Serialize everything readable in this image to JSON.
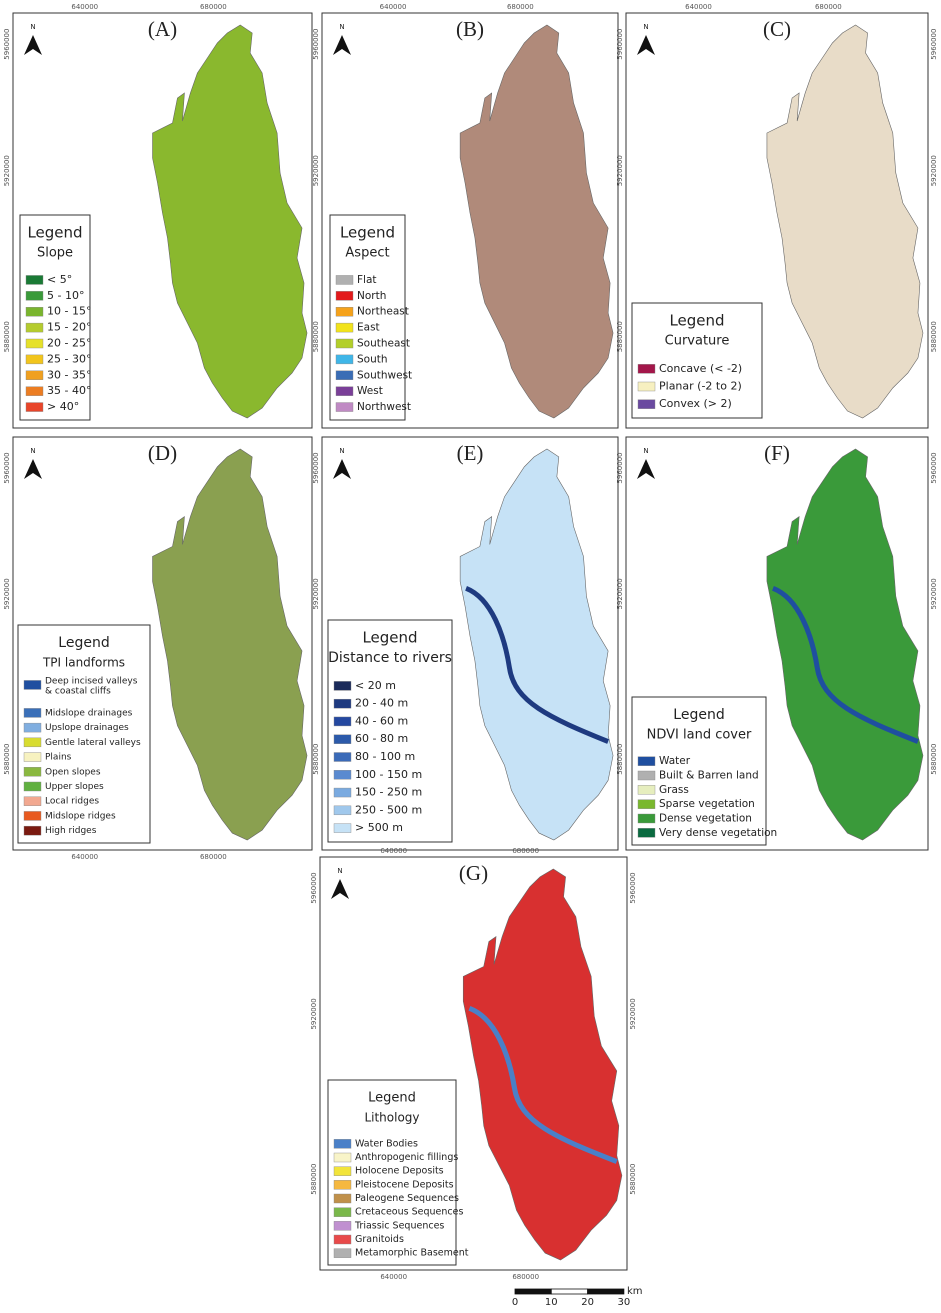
{
  "figure": {
    "north_label": "N",
    "x_tick_labels": [
      "640000",
      "680000"
    ],
    "y_tick_labels": [
      "5960000",
      "5920000",
      "5880000"
    ],
    "scale_bar": {
      "unit": "km",
      "ticks": [
        "0",
        "10",
        "20",
        "30"
      ]
    },
    "panels": [
      {
        "label": "(A)",
        "legend": {
          "title": "Legend",
          "subtitle": "Slope",
          "items": [
            {
              "label": "< 5°",
              "color": "#1a7a35"
            },
            {
              "label": "5 - 10°",
              "color": "#3a9a3a"
            },
            {
              "label": "10 - 15°",
              "color": "#7ab52e"
            },
            {
              "label": "15 - 20°",
              "color": "#b5cc2e"
            },
            {
              "label": "20 - 25°",
              "color": "#e6e12a"
            },
            {
              "label": "25 - 30°",
              "color": "#f2c51c"
            },
            {
              "label": "30 - 35°",
              "color": "#f0a020"
            },
            {
              "label": "35 - 40°",
              "color": "#ec7d22"
            },
            {
              "label": "> 40°",
              "color": "#e8452a"
            }
          ]
        }
      },
      {
        "label": "(B)",
        "legend": {
          "title": "Legend",
          "subtitle": "Aspect",
          "items": [
            {
              "label": "Flat",
              "color": "#b0b0b0"
            },
            {
              "label": "North",
              "color": "#e31a1c"
            },
            {
              "label": "Northeast",
              "color": "#f5a21b"
            },
            {
              "label": "East",
              "color": "#f2e31b"
            },
            {
              "label": "Southeast",
              "color": "#b3cf2a"
            },
            {
              "label": "South",
              "color": "#3fb6e8"
            },
            {
              "label": "Southwest",
              "color": "#3a6db5"
            },
            {
              "label": "West",
              "color": "#7a3f98"
            },
            {
              "label": "Northwest",
              "color": "#c08ac4"
            }
          ]
        }
      },
      {
        "label": "(C)",
        "legend": {
          "title": "Legend",
          "subtitle": "Curvature",
          "items": [
            {
              "label": "Concave (< -2)",
              "color": "#a3164a"
            },
            {
              "label": "Planar (-2 to 2)",
              "color": "#f7f0c0"
            },
            {
              "label": "Convex (> 2)",
              "color": "#6a4aa0"
            }
          ]
        }
      },
      {
        "label": "(D)",
        "legend": {
          "title": "Legend",
          "subtitle": "TPI landforms",
          "items": [
            {
              "label": [
                "Deep incised valleys",
                "& coastal cliffs"
              ],
              "color": "#1f4fa0"
            },
            {
              "label": "Midslope drainages",
              "color": "#3a6fb8"
            },
            {
              "label": "Upslope drainages",
              "color": "#80aee0"
            },
            {
              "label": "Gentle lateral valleys",
              "color": "#d8dc30"
            },
            {
              "label": "Plains",
              "color": "#f7f2c0"
            },
            {
              "label": "Open slopes",
              "color": "#8ab840"
            },
            {
              "label": "Upper slopes",
              "color": "#60b040"
            },
            {
              "label": "Local ridges",
              "color": "#f2a890"
            },
            {
              "label": "Midslope ridges",
              "color": "#e85a20"
            },
            {
              "label": "High ridges",
              "color": "#7a1a10"
            }
          ]
        }
      },
      {
        "label": "(E)",
        "legend": {
          "title": "Legend",
          "subtitle": "Distance to rivers",
          "items": [
            {
              "label": "< 20 m",
              "color": "#1a2a5a"
            },
            {
              "label": "20 - 40 m",
              "color": "#1e3a80"
            },
            {
              "label": "40 - 60 m",
              "color": "#2448a0"
            },
            {
              "label": "60 - 80 m",
              "color": "#2c5aaa"
            },
            {
              "label": "80 - 100 m",
              "color": "#3a6ab8"
            },
            {
              "label": "100 - 150 m",
              "color": "#5a8ad0"
            },
            {
              "label": "150 - 250 m",
              "color": "#7aaae0"
            },
            {
              "label": "250 - 500 m",
              "color": "#a0c8ec"
            },
            {
              "label": "> 500 m",
              "color": "#c6e2f6"
            }
          ]
        }
      },
      {
        "label": "(F)",
        "legend": {
          "title": "Legend",
          "subtitle": "NDVI land cover",
          "items": [
            {
              "label": "Water",
              "color": "#1f4fa0"
            },
            {
              "label": "Built & Barren land",
              "color": "#b0b0b0"
            },
            {
              "label": "Grass",
              "color": "#e6eebe"
            },
            {
              "label": "Sparse vegetation",
              "color": "#7ab82e"
            },
            {
              "label": "Dense vegetation",
              "color": "#3a9a3a"
            },
            {
              "label": "Very dense vegetation",
              "color": "#0a6a40"
            }
          ]
        }
      },
      {
        "label": "(G)",
        "legend": {
          "title": "Legend",
          "subtitle": "Lithology",
          "items": [
            {
              "label": "Water Bodies",
              "color": "#4a80c8"
            },
            {
              "label": "Anthropogenic fillings",
              "color": "#f8f4c8"
            },
            {
              "label": "Holocene Deposits",
              "color": "#f2e43a"
            },
            {
              "label": "Pleistocene Deposits",
              "color": "#f5b840"
            },
            {
              "label": "Paleogene Sequences",
              "color": "#c0904a"
            },
            {
              "label": "Cretaceous Sequences",
              "color": "#7ab84a"
            },
            {
              "label": "Triassic Sequences",
              "color": "#c090d0"
            },
            {
              "label": "Granitoids",
              "color": "#e84a4a"
            },
            {
              "label": "Metamorphic Basement",
              "color": "#b0b0b0"
            }
          ]
        }
      }
    ]
  }
}
